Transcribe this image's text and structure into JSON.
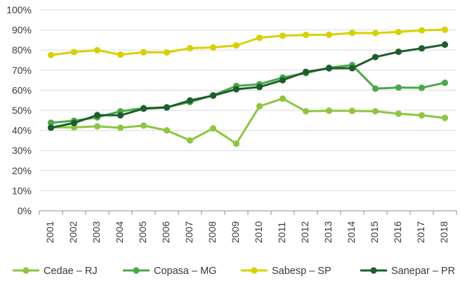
{
  "chart_data": {
    "type": "line",
    "title": "",
    "xlabel": "",
    "ylabel": "",
    "ylim": [
      0,
      100
    ],
    "yticks": [
      "0%",
      "10%",
      "20%",
      "30%",
      "40%",
      "50%",
      "60%",
      "70%",
      "80%",
      "90%",
      "100%"
    ],
    "grid": true,
    "legend_position": "bottom",
    "categories": [
      "2001",
      "2002",
      "2003",
      "2004",
      "2005",
      "2006",
      "2007",
      "2008",
      "2009",
      "2010",
      "2011",
      "2012",
      "2013",
      "2014",
      "2015",
      "2016",
      "2017",
      "2018"
    ],
    "series": [
      {
        "name": "Cedae – RJ",
        "color": "#8dc63f",
        "values": [
          41.5,
          41.5,
          42,
          41.3,
          42.4,
          40,
          35,
          41,
          33.4,
          52,
          55.8,
          49.5,
          49.8,
          49.7,
          49.5,
          48.3,
          47.5,
          46.2
        ]
      },
      {
        "name": "Copasa – MG",
        "color": "#4aa84a",
        "values": [
          43.8,
          44.8,
          46.5,
          49.5,
          51.1,
          51.5,
          54.1,
          57.5,
          62.1,
          63,
          66.3,
          68.5,
          71.2,
          72.5,
          60.8,
          61.3,
          61.2,
          63.7
        ]
      },
      {
        "name": "Sabesp – SP",
        "color": "#d7d100",
        "values": [
          77.5,
          79,
          79.9,
          77.7,
          78.9,
          78.8,
          80.9,
          81.3,
          82.3,
          86.1,
          87.1,
          87.5,
          87.6,
          88.5,
          88.4,
          89,
          89.8,
          90.1
        ]
      },
      {
        "name": "Sanepar – PR",
        "color": "#1d5e2c",
        "values": [
          41.3,
          43.7,
          47.6,
          47.5,
          50.8,
          51.4,
          54.9,
          57.3,
          60.5,
          61.6,
          65,
          69.1,
          70.9,
          71,
          76.5,
          79.1,
          80.8,
          82.7
        ]
      }
    ]
  }
}
